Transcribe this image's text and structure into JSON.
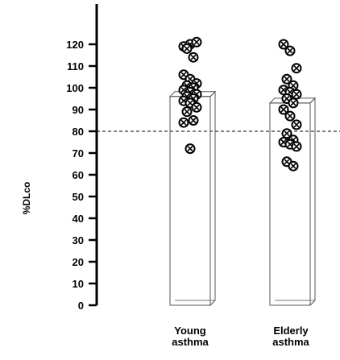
{
  "chart_data": {
    "type": "bar",
    "ylabel": "%DLco",
    "ylim": [
      0,
      120
    ],
    "yticks": [
      0,
      10,
      20,
      30,
      40,
      50,
      60,
      70,
      80,
      90,
      100,
      110,
      120
    ],
    "reference_line": 80,
    "categories": [
      {
        "line1": "Young",
        "line2": "asthma"
      },
      {
        "line1": "Elderly",
        "line2": "asthma"
      }
    ],
    "bar_values": [
      96,
      93
    ],
    "points": [
      [
        119,
        120,
        121,
        118,
        114,
        106,
        104,
        102,
        101,
        100,
        99,
        98,
        97,
        96,
        95,
        94,
        93,
        91,
        89,
        85,
        84,
        72
      ],
      [
        120,
        117,
        109,
        104,
        101,
        99,
        98,
        97,
        95,
        93,
        90,
        87,
        83,
        79,
        76,
        75,
        74,
        73,
        66,
        64
      ]
    ]
  }
}
